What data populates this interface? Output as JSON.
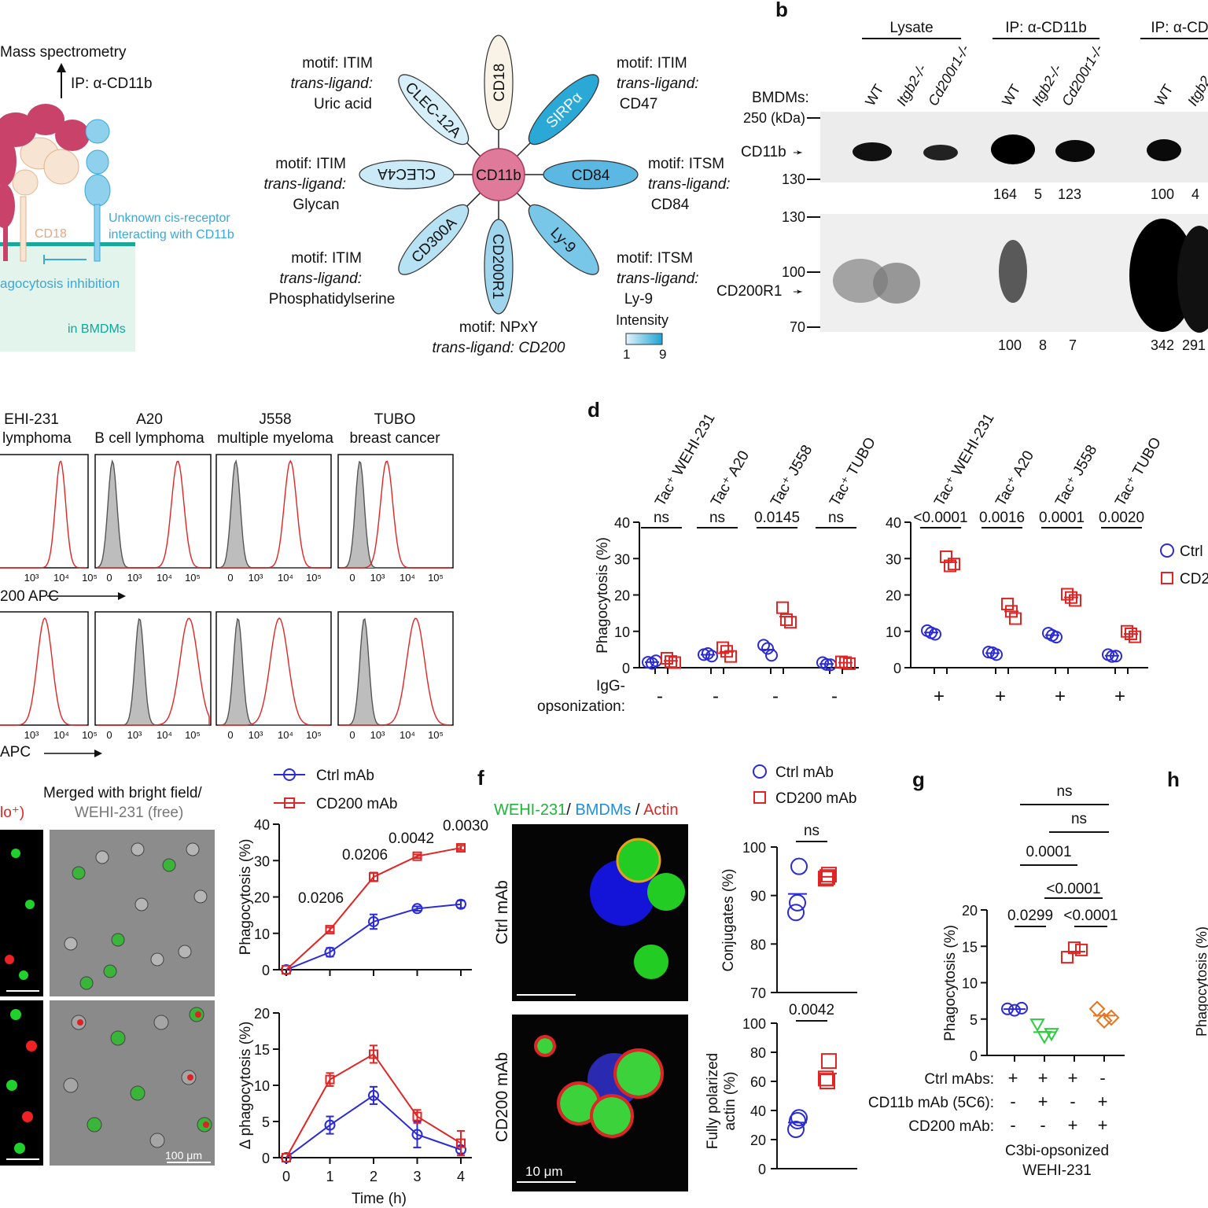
{
  "colors": {
    "ctrl": "#2a2ad6",
    "cd200": "#e02525",
    "cd11b": "#8a8af0",
    "orange": "#e8731a",
    "green": "#2ecc40",
    "teal": "#10a79b",
    "lightblue": "#3aa8d8",
    "pink": "#c8426a",
    "peach": "#f0c7a0"
  },
  "panels": {
    "b": "b",
    "d": "d",
    "f": "f",
    "g": "g",
    "h": "h"
  },
  "panel_a": {
    "mass_spec": "Mass spectrometry",
    "ip": "IP: α-CD11b",
    "cd18": "CD18",
    "unknown1": "Unknown cis-receptor",
    "unknown2": "interacting with CD11b",
    "inhibition": "agocytosis inhibition",
    "bmdm": "in BMDMs",
    "hub": "CD11b",
    "receptors": [
      {
        "name": "CD18",
        "motif": "",
        "ligand": ""
      },
      {
        "name": "SIRPα",
        "motif": "motif: ITIM",
        "ligand": "CD47"
      },
      {
        "name": "CD84",
        "motif": "motif: ITSM",
        "ligand": "CD84"
      },
      {
        "name": "Ly-9",
        "motif": "motif: ITSM",
        "ligand": "Ly-9"
      },
      {
        "name": "CD200R1",
        "motif": "motif: NPxY",
        "ligand": "CD200"
      },
      {
        "name": "CD300A",
        "motif": "motif: ITIM",
        "ligand": "Phosphatidylserine"
      },
      {
        "name": "CLEC4A",
        "motif": "motif: ITIM",
        "ligand": "Glycan"
      },
      {
        "name": "CLEC-12A",
        "motif": "motif: ITIM",
        "ligand": "Uric acid"
      }
    ],
    "trans_ligand": "trans-ligand:",
    "trans_ligand_cd200": "trans-ligand: CD200",
    "intensity": "Intensity",
    "intensity_min": "1",
    "intensity_max": "9"
  },
  "panel_b": {
    "groups": [
      "Lysate",
      "IP: α-CD11b",
      "IP: α-CD"
    ],
    "bmdms": "BMDMs:",
    "lanes": [
      "WT",
      "Itgb2-/-",
      "Cd200r1-/-",
      "WT",
      "Itgb2-/-",
      "Cd200r1-/-",
      "WT",
      "Itgb2"
    ],
    "markers_top": [
      "250 (kDa)",
      "130"
    ],
    "markers_bottom": [
      "130",
      "100",
      "70"
    ],
    "cd11b": "CD11b",
    "cd200r1": "CD200R1",
    "quant_top": [
      "164",
      "5",
      "123",
      "100",
      "4"
    ],
    "quant_bottom": [
      "100",
      "8",
      "7",
      "342",
      "291"
    ]
  },
  "panel_c": {
    "cells": [
      {
        "name": "EHI-231",
        "type": "ll lymphoma"
      },
      {
        "name": "A20",
        "type": "B cell lymphoma"
      },
      {
        "name": "J558",
        "type": "multiple myeloma"
      },
      {
        "name": "TUBO",
        "type": "breast cancer"
      }
    ],
    "xlabel_top": "200 APC",
    "xlabel_bottom": "APC",
    "ticks": [
      "0",
      "10³",
      "10⁴",
      "10⁵"
    ]
  },
  "panel_d": {
    "groups": [
      "Tac⁺ WEHI-231",
      "Tac⁺ A20",
      "Tac⁺ J558",
      "Tac⁺ TUBO",
      "Tac⁺ WEHI-231",
      "Tac⁺ A20",
      "Tac⁺ J558",
      "Tac⁺ TUBO"
    ],
    "pvalues": [
      "ns",
      "ns",
      "0.0145",
      "ns",
      "<0.0001",
      "0.0016",
      "0.0001",
      "0.0020"
    ],
    "ylabel": "Phagocytosis (%)",
    "yticks": [
      "0",
      "10",
      "20",
      "30",
      "40"
    ],
    "igg1": "IgG-",
    "igg2": "opsonization:",
    "signs": [
      "-",
      "-",
      "-",
      "-",
      "+",
      "+",
      "+",
      "+"
    ],
    "legend": [
      "Ctrl",
      "CD2"
    ]
  },
  "panel_e": {
    "title1": "Merged with bright field/",
    "title2": "WEHI-231 (free)",
    "label_left": "lo⁺)",
    "scale": "100 μm"
  },
  "panel_e_charts": {
    "legend": [
      "Ctrl mAb",
      "CD200 mAb"
    ],
    "top": {
      "ylabel": "Phagocytosis (%)",
      "yticks": [
        "0",
        "10",
        "20",
        "30",
        "40"
      ],
      "pvals": [
        "0.0206",
        "0.0206",
        "0.0042",
        "0.0030"
      ]
    },
    "bottom": {
      "ylabel": "Δ phagocytosis (%)",
      "yticks": [
        "0",
        "5",
        "10",
        "15",
        "20"
      ],
      "xticks": [
        "0",
        "1",
        "2",
        "3",
        "4"
      ],
      "xlabel": "Time (h)"
    }
  },
  "panel_f": {
    "title": [
      "WEHI-231",
      "/ ",
      "BMDMs",
      " / ",
      "Actin"
    ],
    "row1": "Ctrl mAb",
    "row2": "CD200 mAb",
    "scale": "10 μm",
    "legend": [
      "Ctrl mAb",
      "CD200 mAb"
    ],
    "top": {
      "ylabel": "Conjugates (%)",
      "yticks": [
        "70",
        "80",
        "90",
        "100"
      ],
      "p": "ns"
    },
    "bottom": {
      "ylabel1": "Fully polarized",
      "ylabel2": "actin (%)",
      "yticks": [
        "0",
        "20",
        "40",
        "60",
        "80",
        "100"
      ],
      "p": "0.0042"
    }
  },
  "panel_g": {
    "ylabel": "Phagocytosis (%)",
    "yticks": [
      "0",
      "5",
      "10",
      "15",
      "20"
    ],
    "pvals": [
      "ns",
      "ns",
      "0.0001",
      "<0.0001",
      "0.0299",
      "<0.0001"
    ],
    "rows": [
      {
        "label": "Ctrl mAbs:",
        "signs": [
          "+",
          "+",
          "+",
          "-"
        ]
      },
      {
        "label": "CD11b mAb (5C6):",
        "signs": [
          "-",
          "+",
          "-",
          "+"
        ]
      },
      {
        "label": "CD200 mAb:",
        "signs": [
          "-",
          "-",
          "+",
          "+"
        ]
      }
    ],
    "footer1": "C3bi-opsonized",
    "footer2": "WEHI-231"
  },
  "panel_h": {
    "ylabel": "Phagocytosis (%)"
  },
  "chart_data": [
    {
      "type": "scatter",
      "id": "d",
      "ylabel": "Phagocytosis (%)",
      "ylim": [
        0,
        40
      ],
      "categories": [
        "Tac⁺ WEHI-231",
        "Tac⁺ A20",
        "Tac⁺ J558",
        "Tac⁺ TUBO",
        "Tac⁺ WEHI-231",
        "Tac⁺ A20",
        "Tac⁺ J558",
        "Tac⁺ TUBO"
      ],
      "series": [
        {
          "name": "Ctrl",
          "points": [
            [
              1.5,
              1.9,
              1.2
            ],
            [
              3.6,
              3.2,
              3.9
            ],
            [
              6.2,
              3.4,
              5.3
            ],
            [
              1.4,
              0.8,
              0.9
            ],
            [
              10.2,
              9.2,
              9.6
            ],
            [
              4.3,
              3.6,
              4.1
            ],
            [
              9.5,
              8.4,
              8.9
            ],
            [
              3.6,
              3.2,
              3.1
            ]
          ]
        },
        {
          "name": "CD2",
          "points": [
            [
              2.6,
              1.4,
              1.7
            ],
            [
              5.5,
              3.1,
              4.5
            ],
            [
              16.5,
              12.5,
              13.2
            ],
            [
              1.6,
              1.1,
              1.4
            ],
            [
              30.5,
              28.5,
              28.0
            ],
            [
              17.5,
              13.5,
              15.5
            ],
            [
              20.2,
              18.5,
              19.3
            ],
            [
              10.0,
              8.5,
              9.3
            ]
          ]
        }
      ]
    },
    {
      "type": "line",
      "id": "e-top",
      "xlabel": "Time (h)",
      "ylabel": "Phagocytosis (%)",
      "ylim": [
        0,
        40
      ],
      "x": [
        0,
        1,
        2,
        3,
        4
      ],
      "series": [
        {
          "name": "Ctrl mAb",
          "values": [
            0,
            4.8,
            13.2,
            16.8,
            18.0
          ],
          "err": [
            0,
            1.2,
            2.0,
            0.6,
            1.0
          ]
        },
        {
          "name": "CD200 mAb",
          "values": [
            0,
            11.0,
            25.5,
            31.2,
            33.5
          ],
          "err": [
            0,
            0.6,
            1.2,
            0.5,
            0.6
          ]
        }
      ]
    },
    {
      "type": "line",
      "id": "e-bottom",
      "xlabel": "Time (h)",
      "ylabel": "Δ phagocytosis (%)",
      "ylim": [
        0,
        20
      ],
      "x": [
        0,
        1,
        2,
        3,
        4
      ],
      "series": [
        {
          "name": "Ctrl mAb",
          "values": [
            0,
            4.5,
            8.6,
            3.2,
            1.1
          ],
          "err": [
            0,
            1.2,
            1.2,
            1.8,
            0.5
          ]
        },
        {
          "name": "CD200 mAb",
          "values": [
            0,
            10.8,
            14.3,
            5.7,
            2.0
          ],
          "err": [
            0,
            0.9,
            1.2,
            0.9,
            1.7
          ]
        }
      ]
    },
    {
      "type": "scatter",
      "id": "f-top",
      "ylabel": "Conjugates (%)",
      "ylim": [
        70,
        100
      ],
      "series": [
        {
          "name": "Ctrl mAb",
          "points": [
            96,
            86.5,
            88.5
          ]
        },
        {
          "name": "CD200 mAb",
          "points": [
            94.3,
            93.5,
            93.8
          ]
        }
      ]
    },
    {
      "type": "scatter",
      "id": "f-bottom",
      "ylabel": "Fully polarized actin (%)",
      "ylim": [
        0,
        100
      ],
      "series": [
        {
          "name": "Ctrl mAb",
          "points": [
            35,
            27,
            33
          ]
        },
        {
          "name": "CD200 mAb",
          "points": [
            74,
            62,
            60
          ]
        }
      ]
    },
    {
      "type": "scatter",
      "id": "g",
      "ylabel": "Phagocytosis (%)",
      "ylim": [
        0,
        20
      ],
      "categories": [
        "Ctrl mAbs",
        "CD11b mAb (5C6)",
        "CD200 mAb",
        "CD11b mAb (5C6) + CD200 mAb"
      ],
      "series": [
        {
          "name": "Ctrl mAbs",
          "points": [
            6.4,
            6.2,
            6.5
          ]
        },
        {
          "name": "CD11b mAb (5C6)",
          "points": [
            4.2,
            2.5,
            2.9
          ]
        },
        {
          "name": "CD200 mAb",
          "points": [
            13.5,
            14.8,
            14.5
          ]
        },
        {
          "name": "CD11b + CD200",
          "points": [
            6.4,
            4.8,
            5.2
          ]
        }
      ]
    }
  ]
}
